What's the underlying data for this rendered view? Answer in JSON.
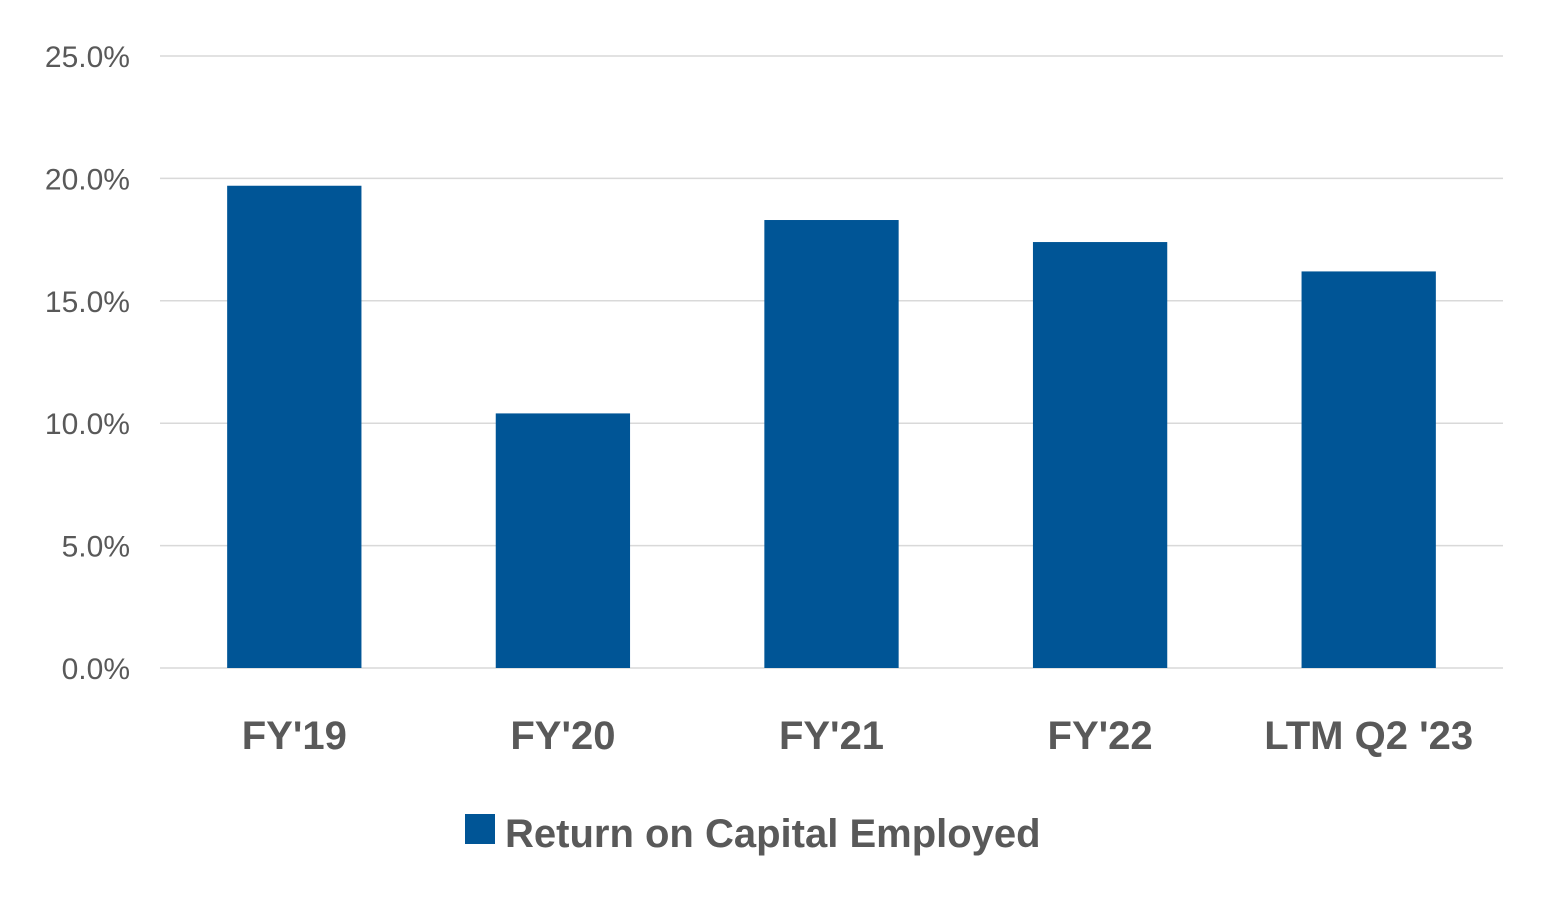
{
  "chart_data": {
    "type": "bar",
    "categories": [
      "FY'19",
      "FY'20",
      "FY'21",
      "FY'22",
      "LTM Q2 '23"
    ],
    "series": [
      {
        "name": "Return on Capital Employed",
        "values": [
          19.7,
          10.4,
          18.3,
          17.4,
          16.2
        ],
        "color": "#005596"
      }
    ],
    "ylim": [
      0,
      25
    ],
    "yticks": [
      0,
      5,
      10,
      15,
      20,
      25
    ],
    "ytick_labels": [
      "0.0%",
      "5.0%",
      "10.0%",
      "15.0%",
      "20.0%",
      "25.0%"
    ],
    "grid": true,
    "legend_position": "bottom-center",
    "title": "",
    "xlabel": "",
    "ylabel": ""
  }
}
